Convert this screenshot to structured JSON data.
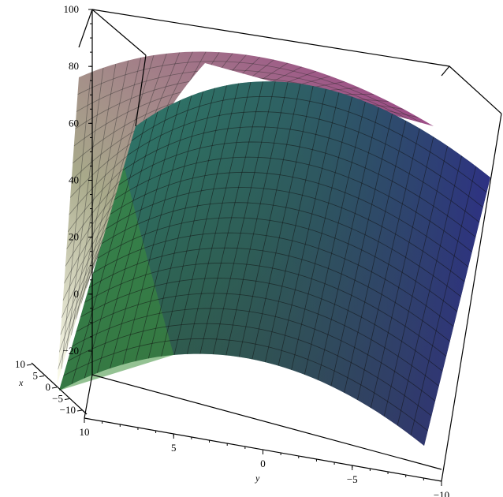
{
  "chart_data": {
    "type": "surface3d",
    "title": "",
    "xlabel": "x",
    "ylabel": "y",
    "zlabel": "",
    "xlim": [
      -10,
      10
    ],
    "ylim": [
      -10,
      10
    ],
    "zlim": [
      -20,
      100
    ],
    "z_ticks": [
      "100",
      "80",
      "60",
      "40",
      "20",
      "0",
      "−20"
    ],
    "x_ticks": [
      "10",
      "5",
      "0",
      "−5",
      "−10"
    ],
    "y_ticks": [
      "10",
      "5",
      "0",
      "−5",
      "−10"
    ],
    "series": [
      {
        "surface": "front",
        "color_from": "#3a7f3a",
        "color_to": "#2a2f6e",
        "edge_values": [
          0,
          35,
          45,
          65,
          85,
          90,
          75,
          45,
          5
        ],
        "crest_values": [
          70,
          78,
          84,
          88,
          90,
          88,
          84,
          77,
          68
        ]
      },
      {
        "surface": "back",
        "color_from": "#ffff99",
        "color_to": "#8a3a7f",
        "edge_values": [
          -20,
          10,
          40,
          65,
          78,
          88,
          92,
          85,
          70
        ],
        "crest_values": [
          78,
          83,
          88,
          91,
          92,
          90,
          85,
          78,
          70
        ]
      }
    ],
    "grid": true,
    "box": true,
    "legend": "none"
  }
}
